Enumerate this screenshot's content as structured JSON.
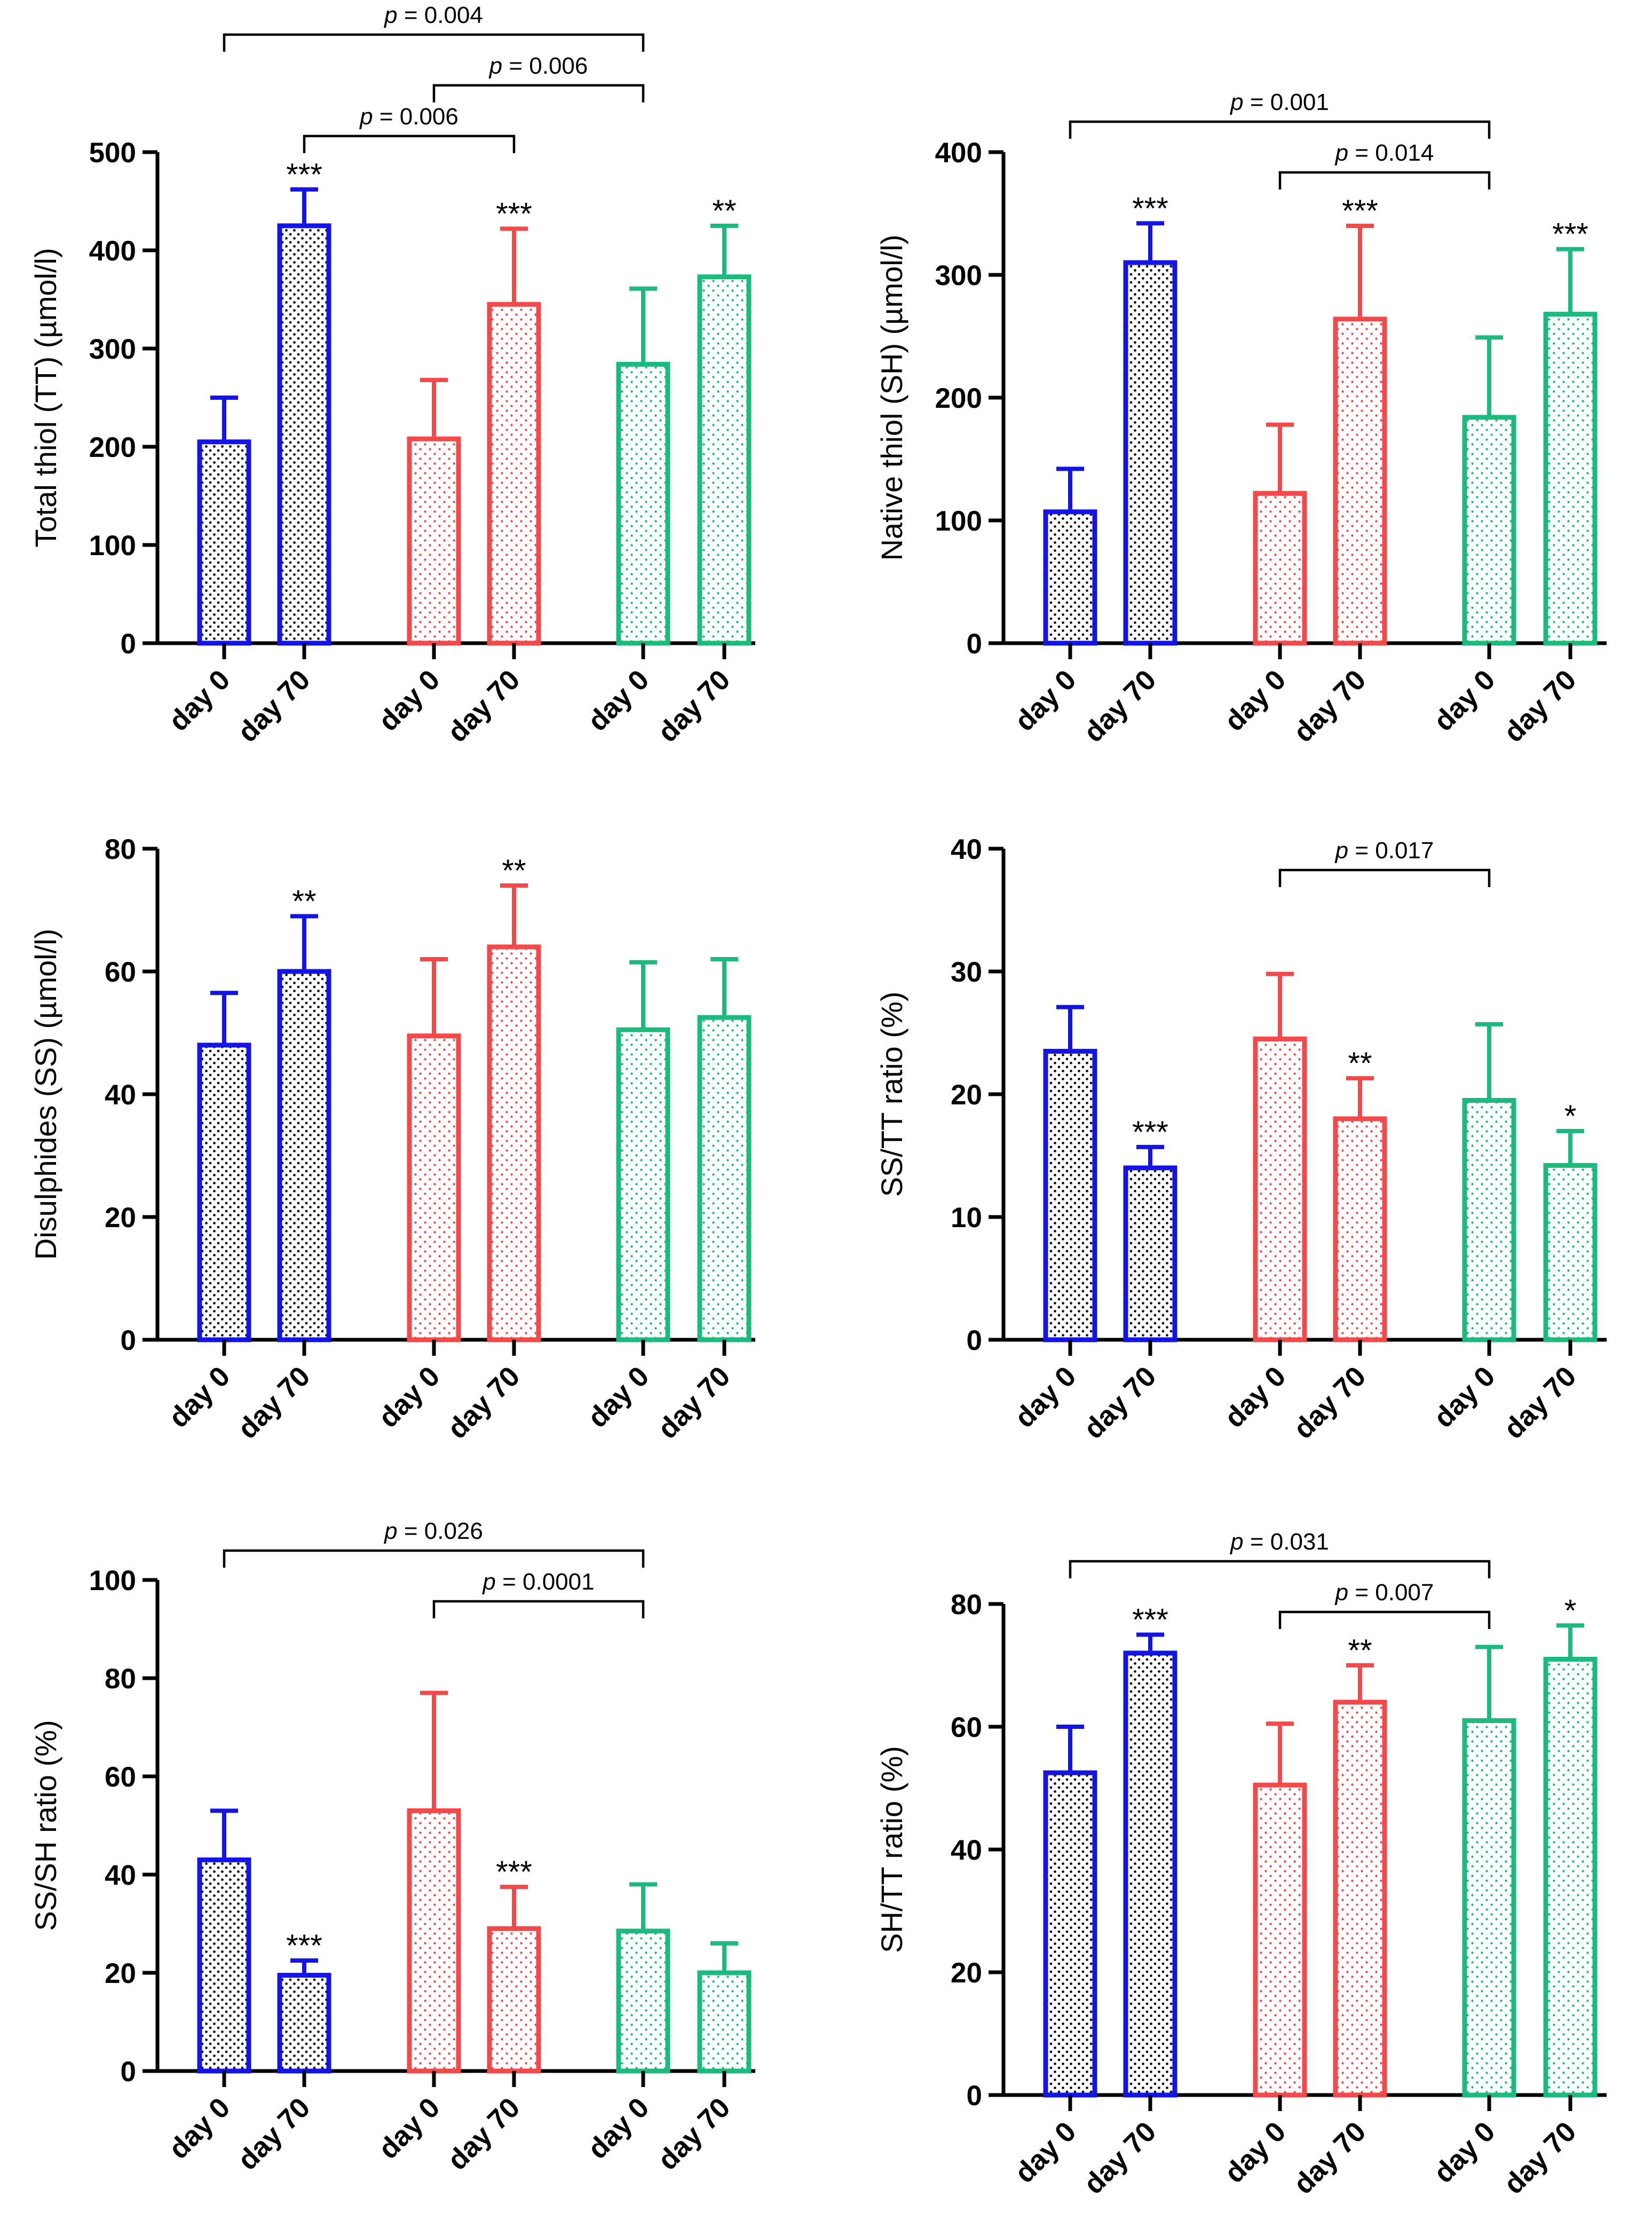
{
  "colors": {
    "blue": "#1414e6",
    "red": "#f24a4a",
    "green": "#1dba7f",
    "axis": "#000000"
  },
  "categories": [
    "day 0",
    "day 70",
    "day 0",
    "day 70",
    "day 0",
    "day 70"
  ],
  "group_colors": [
    "blue",
    "blue",
    "red",
    "red",
    "green",
    "green"
  ],
  "chart_data": [
    {
      "type": "bar",
      "ylabel": "Total thiol (TT) (µmol/l)",
      "ylim": [
        0,
        500
      ],
      "yticks": [
        0,
        100,
        200,
        300,
        400,
        500
      ],
      "values": [
        205,
        425,
        208,
        345,
        284,
        373
      ],
      "errors": [
        45,
        37,
        60,
        77,
        77,
        52
      ],
      "significance": [
        "",
        "***",
        "",
        "***",
        "",
        "**"
      ],
      "comparisons": [
        {
          "from": 0,
          "to": 4,
          "label": "p = 0.004"
        },
        {
          "from": 1,
          "to": 3,
          "label": "p = 0.006"
        },
        {
          "from": 2,
          "to": 4,
          "label": "p = 0.006"
        }
      ]
    },
    {
      "type": "bar",
      "ylabel": "Native thiol (SH) (µmol/l)",
      "ylim": [
        0,
        400
      ],
      "yticks": [
        0,
        100,
        200,
        300,
        400
      ],
      "values": [
        107,
        310,
        122,
        264,
        184,
        268
      ],
      "errors": [
        35,
        32,
        56,
        76,
        65,
        53
      ],
      "significance": [
        "",
        "***",
        "",
        "***",
        "",
        "***"
      ],
      "comparisons": [
        {
          "from": 0,
          "to": 4,
          "label": "p = 0.001"
        },
        {
          "from": 2,
          "to": 4,
          "label": "p = 0.014"
        }
      ]
    },
    {
      "type": "bar",
      "ylabel": "Disulphides (SS) (µmol/l)",
      "ylim": [
        0,
        80
      ],
      "yticks": [
        0,
        20,
        40,
        60,
        80
      ],
      "values": [
        48,
        60,
        49.5,
        64,
        50.5,
        52.5
      ],
      "errors": [
        8.5,
        9,
        12.5,
        10,
        11,
        9.5
      ],
      "significance": [
        "",
        "**",
        "",
        "**",
        "",
        ""
      ],
      "comparisons": []
    },
    {
      "type": "bar",
      "ylabel": "SS/TT ratio (%)",
      "ylim": [
        0,
        40
      ],
      "yticks": [
        0,
        10,
        20,
        30,
        40
      ],
      "values": [
        23.5,
        14,
        24.5,
        18,
        19.5,
        14.2
      ],
      "errors": [
        3.6,
        1.7,
        5.3,
        3.3,
        6.2,
        2.8
      ],
      "significance": [
        "",
        "***",
        "",
        "**",
        "",
        "*"
      ],
      "comparisons": [
        {
          "from": 2,
          "to": 4,
          "label": "p = 0.017"
        }
      ]
    },
    {
      "type": "bar",
      "ylabel": "SS/SH ratio (%)",
      "ylim": [
        0,
        100
      ],
      "yticks": [
        0,
        20,
        40,
        60,
        80,
        100
      ],
      "values": [
        43,
        19.5,
        53,
        29,
        28.5,
        20
      ],
      "errors": [
        10,
        3,
        24,
        8.5,
        9.5,
        6
      ],
      "significance": [
        "",
        "***",
        "",
        "***",
        "",
        ""
      ],
      "comparisons": [
        {
          "from": 0,
          "to": 4,
          "label": "p = 0.026"
        },
        {
          "from": 2,
          "to": 4,
          "label": "p = 0.0001"
        }
      ]
    },
    {
      "type": "bar",
      "ylabel": "SH/TT ratio (%)",
      "ylim": [
        0,
        80
      ],
      "yticks": [
        0,
        20,
        40,
        60,
        80
      ],
      "values": [
        52.5,
        72,
        50.5,
        64,
        61,
        71
      ],
      "errors": [
        7.5,
        3,
        10,
        6,
        12,
        5.5
      ],
      "significance": [
        "",
        "***",
        "",
        "**",
        "",
        "*"
      ],
      "comparisons": [
        {
          "from": 0,
          "to": 4,
          "label": "p = 0.031"
        },
        {
          "from": 2,
          "to": 4,
          "label": "p = 0.007"
        }
      ]
    }
  ]
}
